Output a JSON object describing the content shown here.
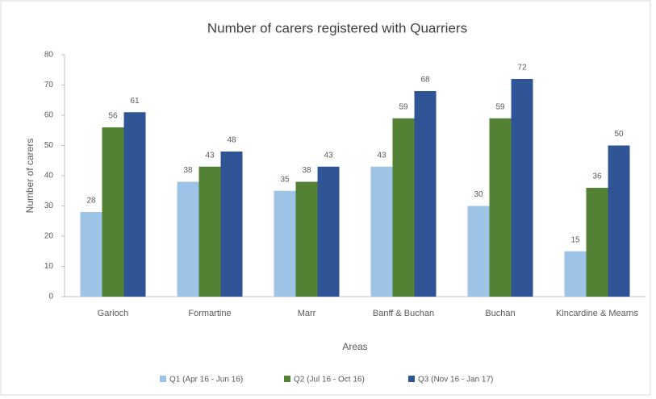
{
  "chart_data": {
    "type": "bar",
    "title": "Number of carers registered with Quarriers",
    "x_label": "Areas",
    "y_label": "Number of carers",
    "categories": [
      "Garioch",
      "Formartine",
      "Marr",
      "Banff & Buchan",
      "Buchan",
      "Kincardine & Mearns"
    ],
    "series": [
      {
        "name": "Q1 (Apr 16 - Jun 16)",
        "color": "#9dc3e6",
        "values": [
          28,
          38,
          35,
          43,
          30,
          15
        ]
      },
      {
        "name": "Q2 (Jul 16 - Oct 16)",
        "color": "#548235",
        "values": [
          56,
          43,
          38,
          59,
          59,
          36
        ]
      },
      {
        "name": "Q3 (Nov 16 - Jan 17)",
        "color": "#2f5597",
        "values": [
          61,
          48,
          43,
          68,
          72,
          50
        ]
      }
    ],
    "ylim": [
      0,
      80
    ],
    "yticks": [
      0,
      10,
      20,
      30,
      40,
      50,
      60,
      70,
      80
    ],
    "grid": false,
    "legend": "bottom"
  }
}
